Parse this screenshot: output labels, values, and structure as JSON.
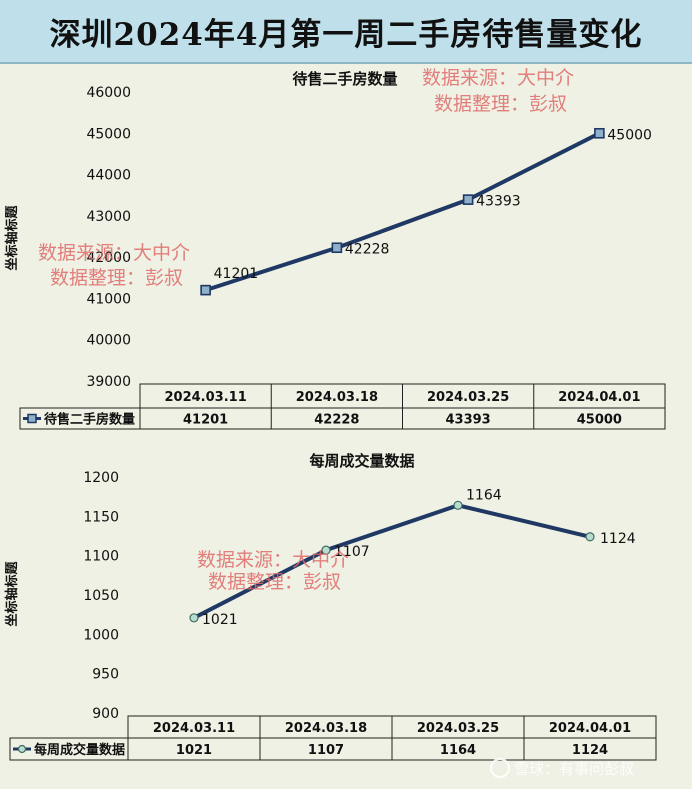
{
  "banner_title": "深圳2024年4月第一周二手房待售量变化",
  "watermark": {
    "line1": "数据来源：大中介",
    "line2": "数据整理：彭叔"
  },
  "footer_logo_text": "雪球：有事问彭叔",
  "chart_data": [
    {
      "type": "line",
      "title": "待售二手房数量",
      "ylabel": "坐标轴标题",
      "categories": [
        "2024.03.11",
        "2024.03.18",
        "2024.03.25",
        "2024.04.01"
      ],
      "series": [
        {
          "name": "待售二手房数量",
          "values": [
            41201,
            42228,
            43393,
            45000
          ]
        }
      ],
      "value_labels": [
        "41201",
        "42228",
        "43393",
        "45000"
      ],
      "ylim": [
        39000,
        46000
      ],
      "yticks": [
        "39000",
        "40000",
        "41000",
        "42000",
        "43000",
        "44000",
        "45000",
        "46000"
      ],
      "grid": false,
      "data_table": true,
      "line_color": "#1f3864",
      "marker": "square"
    },
    {
      "type": "line",
      "title": "每周成交量数据",
      "ylabel": "坐标轴标题",
      "categories": [
        "2024.03.11",
        "2024.03.18",
        "2024.03.25",
        "2024.04.01"
      ],
      "series": [
        {
          "name": "每周成交量数据",
          "values": [
            1021,
            1107,
            1164,
            1124
          ]
        }
      ],
      "value_labels": [
        "1021",
        "1107",
        "1164",
        "1124"
      ],
      "ylim": [
        900,
        1200
      ],
      "yticks": [
        "900",
        "950",
        "1000",
        "1050",
        "1100",
        "1150",
        "1200"
      ],
      "grid": false,
      "data_table": true,
      "line_color": "#1f3864",
      "marker": "circle"
    }
  ]
}
